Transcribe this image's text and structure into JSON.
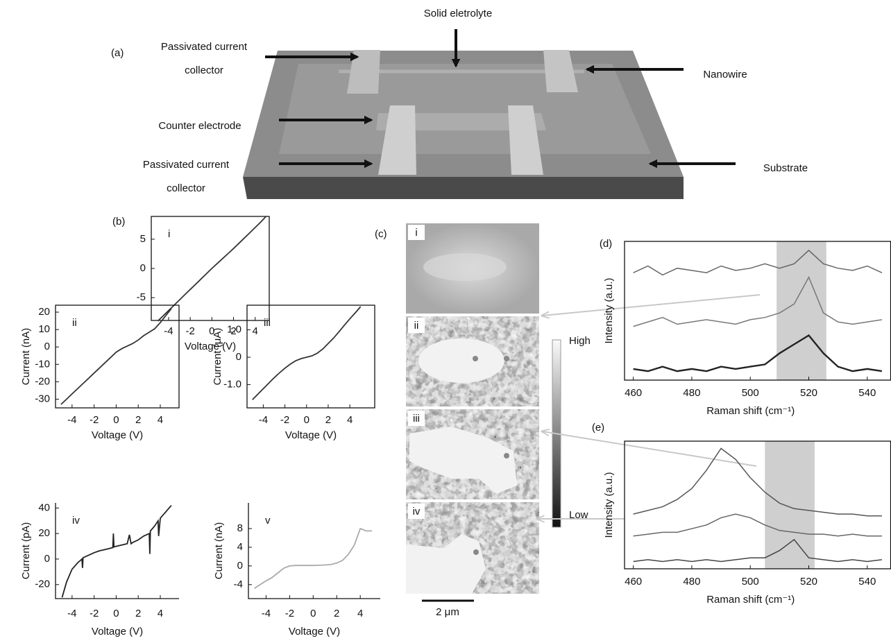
{
  "panel_a": {
    "label": "(a)",
    "annotations": [
      {
        "lines": [
          "Solid eletrolyte"
        ]
      },
      {
        "lines": [
          "Passivated current",
          "collector"
        ]
      },
      {
        "lines": [
          "Nanowire"
        ]
      },
      {
        "lines": [
          "Counter electrode"
        ]
      },
      {
        "lines": [
          "Passivated current",
          "collector"
        ]
      },
      {
        "lines": [
          "Substrate"
        ]
      }
    ]
  },
  "panel_b": {
    "label": "(b)"
  },
  "panel_c": {
    "label": "(c)",
    "tiles": [
      "i",
      "ii",
      "iii",
      "iv"
    ],
    "colorbar": {
      "high": "High",
      "low": "Low"
    },
    "scale_bar": "2 μm"
  },
  "chart_data": [
    {
      "type": "line",
      "label": "i",
      "xlabel": "Voltage (V)",
      "color": "#333333",
      "x": [
        -5,
        -4.5,
        -4,
        -3.5,
        -3,
        -2.5,
        -2,
        -1.5,
        -1,
        -0.5,
        0,
        0.5,
        1,
        1.5,
        2,
        2.5,
        3,
        3.5,
        4,
        4.5,
        5
      ],
      "values": [
        -9,
        -8.1,
        -7.2,
        -6.3,
        -5.4,
        -4.5,
        -3.6,
        -2.7,
        -1.8,
        -0.9,
        0,
        0.85,
        1.7,
        2.55,
        3.4,
        4.3,
        5.2,
        6.1,
        7.0,
        7.9,
        8.9
      ],
      "xlim": [
        -5.6,
        5.3
      ],
      "ylim": [
        -8.9,
        8.9
      ],
      "xticks": [
        -4,
        -2,
        0,
        2,
        4
      ],
      "yticks": [
        -5,
        0,
        5
      ]
    },
    {
      "type": "line",
      "label": "ii",
      "xlabel": "Voltage (V)",
      "ylabel": "Current (nA)",
      "color": "#333333",
      "x": [
        -5,
        -4.5,
        -4,
        -3.5,
        -3,
        -2.5,
        -2,
        -1.5,
        -1,
        -0.5,
        0,
        0.5,
        1,
        1.5,
        2,
        2.5,
        3,
        3.5,
        4,
        4.5,
        5
      ],
      "values": [
        -33,
        -30,
        -27,
        -24,
        -21,
        -18,
        -15,
        -12,
        -9,
        -6,
        -3,
        -1,
        0.5,
        2,
        4,
        6.5,
        8.5,
        10.5,
        14,
        18,
        22
      ],
      "xlim": [
        -5.5,
        5.7
      ],
      "ylim": [
        -35,
        24
      ],
      "xticks": [
        -4,
        -2,
        0,
        2,
        4
      ],
      "yticks": [
        -30,
        -20,
        -10,
        0,
        10,
        20
      ]
    },
    {
      "type": "line",
      "label": "iii",
      "xlabel": "Voltage (V)",
      "ylabel": "Current (μA)",
      "color": "#333333",
      "x": [
        -5,
        -4.5,
        -4,
        -3.5,
        -3,
        -2.5,
        -2,
        -1.5,
        -1,
        -0.5,
        0,
        0.5,
        1,
        1.5,
        2,
        2.5,
        3,
        3.5,
        4,
        4.5,
        5
      ],
      "values": [
        -1.55,
        -1.35,
        -1.15,
        -0.95,
        -0.75,
        -0.57,
        -0.4,
        -0.25,
        -0.13,
        -0.05,
        0,
        0.05,
        0.15,
        0.3,
        0.5,
        0.7,
        0.93,
        1.17,
        1.4,
        1.62,
        1.85
      ],
      "xlim": [
        -5.5,
        6.3
      ],
      "ylim": [
        -1.85,
        1.9
      ],
      "xticks": [
        -4,
        -2,
        0,
        2,
        4
      ],
      "yticks": [
        {
          "value": -1,
          "label": "-1.0"
        },
        0,
        {
          "value": 1,
          "label": "1.0"
        }
      ]
    },
    {
      "type": "line",
      "label": "iv",
      "xlabel": "Voltage (V)",
      "ylabel": "Current (pA)",
      "color": "#222222",
      "x": [
        -4.9,
        -4.5,
        -4,
        -3.5,
        -3.1,
        -3.05,
        -3,
        -2.5,
        -2,
        -1.5,
        -1,
        -0.5,
        -0.3,
        -0.25,
        -0.2,
        0,
        0.5,
        1,
        1.2,
        1.35,
        1.5,
        2,
        2.5,
        3,
        3.05,
        3.1,
        3.5,
        3.8,
        3.85,
        4,
        4.5,
        5
      ],
      "values": [
        -30,
        -18,
        -8,
        -3,
        0,
        -7,
        1,
        3,
        5,
        6.5,
        7.5,
        8.5,
        9,
        20,
        9.5,
        10,
        11,
        12,
        19,
        12,
        13,
        15,
        18,
        20,
        4,
        22,
        26,
        30,
        18,
        32,
        37,
        42
      ],
      "xlim": [
        -5.5,
        5.7
      ],
      "ylim": [
        -31,
        44
      ],
      "xticks": [
        -4,
        -2,
        0,
        2,
        4
      ],
      "yticks": [
        -20,
        0,
        20,
        40
      ]
    },
    {
      "type": "line",
      "label": "v",
      "xlabel": "Voltage (V)",
      "ylabel": "Current (nA)",
      "color": "#aaaaaa",
      "x": [
        -5,
        -4.5,
        -4,
        -3.5,
        -3,
        -2.5,
        -2,
        -1.5,
        -1,
        -0.5,
        0,
        0.5,
        1,
        1.5,
        2,
        2.5,
        3,
        3.5,
        4,
        4.5,
        5
      ],
      "values": [
        -4.8,
        -4,
        -3.2,
        -2.5,
        -1.5,
        -0.5,
        0,
        0.1,
        0.1,
        0.1,
        0.1,
        0.15,
        0.2,
        0.3,
        0.6,
        1.2,
        2.5,
        4.5,
        8,
        7.5,
        7.5
      ],
      "xlim": [
        -5.5,
        5.7
      ],
      "ylim": [
        -7,
        13.5
      ],
      "xticks": [
        -4,
        -2,
        0,
        2,
        4
      ],
      "yticks": [
        -4,
        0,
        4,
        8
      ]
    },
    {
      "type": "line",
      "label": "(d)",
      "xlabel": "Raman shift (cm⁻¹)",
      "ylabel": "Intensity (a.u.)",
      "x": [
        460,
        465,
        470,
        475,
        480,
        485,
        490,
        495,
        500,
        505,
        510,
        515,
        520,
        525,
        530,
        535,
        540,
        545
      ],
      "series": [
        {
          "color": "#666666",
          "values": [
            2.4,
            2.55,
            2.35,
            2.5,
            2.45,
            2.4,
            2.55,
            2.45,
            2.5,
            2.6,
            2.5,
            2.6,
            2.9,
            2.6,
            2.5,
            2.45,
            2.55,
            2.4
          ]
        },
        {
          "color": "#777777",
          "values": [
            1.2,
            1.3,
            1.4,
            1.25,
            1.3,
            1.35,
            1.3,
            1.25,
            1.35,
            1.4,
            1.5,
            1.7,
            2.3,
            1.5,
            1.3,
            1.25,
            1.3,
            1.35
          ]
        },
        {
          "color": "#222222",
          "values": [
            0.25,
            0.2,
            0.3,
            0.2,
            0.25,
            0.2,
            0.3,
            0.25,
            0.3,
            0.35,
            0.6,
            0.8,
            1.0,
            0.6,
            0.3,
            0.2,
            0.25,
            0.2
          ]
        }
      ],
      "highlight": [
        509,
        526
      ],
      "xlim": [
        457,
        548
      ],
      "ylim": [
        0,
        3.1
      ],
      "xticks": [
        460,
        480,
        500,
        520,
        540
      ]
    },
    {
      "type": "line",
      "label": "(e)",
      "xlabel": "Raman shift (cm⁻¹)",
      "ylabel": "Intensity (a.u.)",
      "x": [
        460,
        465,
        470,
        475,
        480,
        485,
        490,
        495,
        500,
        505,
        510,
        515,
        520,
        525,
        530,
        535,
        540,
        545
      ],
      "series": [
        {
          "color": "#555555",
          "values": [
            1.5,
            1.6,
            1.7,
            1.9,
            2.2,
            2.7,
            3.3,
            3.0,
            2.5,
            2.1,
            1.8,
            1.65,
            1.6,
            1.55,
            1.5,
            1.5,
            1.45,
            1.45
          ]
        },
        {
          "color": "#666666",
          "values": [
            0.9,
            0.95,
            1.0,
            1.0,
            1.1,
            1.2,
            1.4,
            1.5,
            1.4,
            1.2,
            1.05,
            1.0,
            0.95,
            0.95,
            0.9,
            0.95,
            0.9,
            0.9
          ]
        },
        {
          "color": "#444444",
          "values": [
            0.2,
            0.25,
            0.2,
            0.25,
            0.2,
            0.25,
            0.2,
            0.25,
            0.3,
            0.3,
            0.5,
            0.8,
            0.3,
            0.25,
            0.2,
            0.25,
            0.2,
            0.25
          ]
        }
      ],
      "highlight": [
        505,
        522
      ],
      "xlim": [
        457,
        548
      ],
      "ylim": [
        0,
        3.5
      ],
      "xticks": [
        460,
        480,
        500,
        520,
        540
      ]
    }
  ]
}
